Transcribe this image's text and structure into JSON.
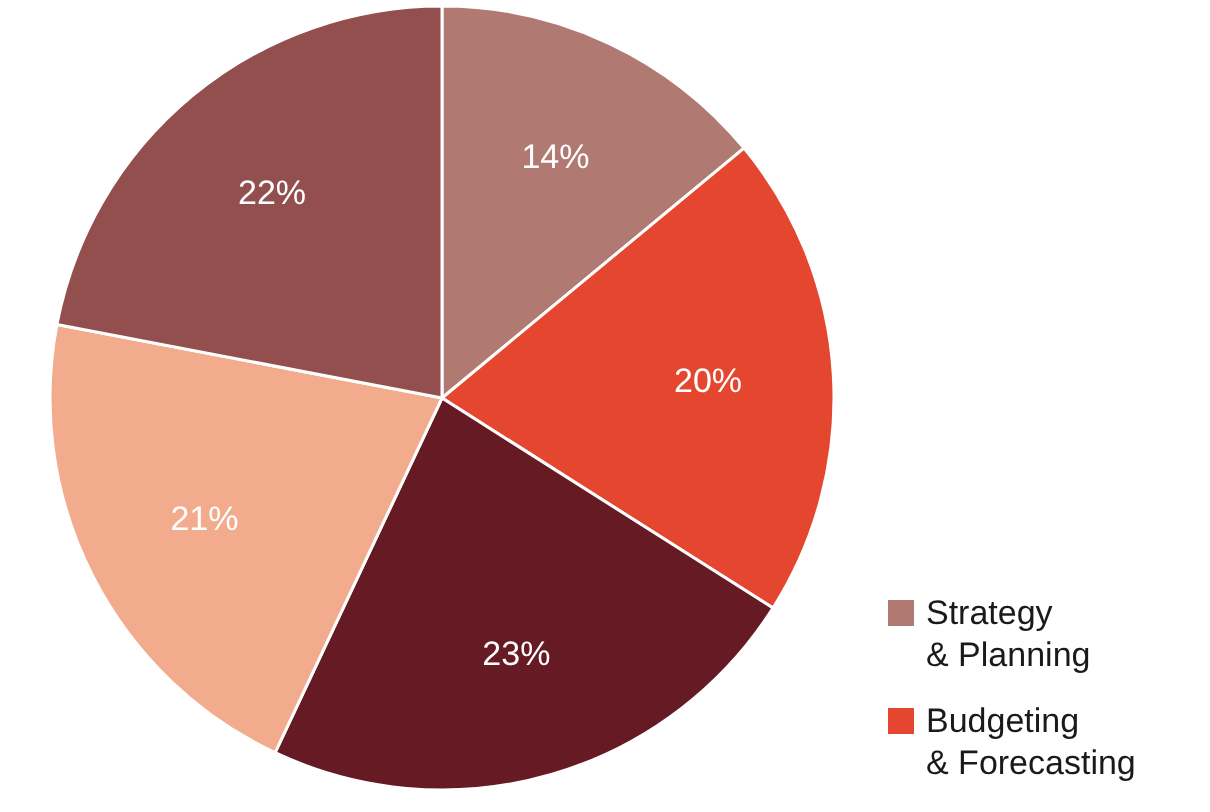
{
  "chart_data": {
    "type": "pie",
    "categories": [
      "Strategy\n& Planning",
      "Budgeting\n& Forecasting",
      null,
      null,
      null
    ],
    "values": [
      14,
      20,
      23,
      21,
      22
    ],
    "colors": [
      "#b07a72",
      "#e4462f",
      "#661a24",
      "#f2ab8c",
      "#934f4e"
    ],
    "value_labels": [
      "14%",
      "20%",
      "23%",
      "21%",
      "22%"
    ],
    "legend": "bottom right"
  }
}
